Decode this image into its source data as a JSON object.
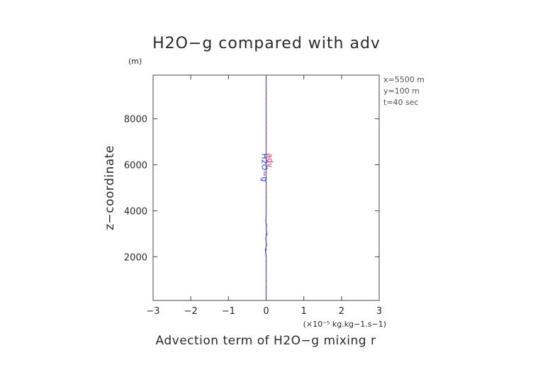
{
  "chart_data": {
    "type": "line",
    "title": "H2O−g compared with adv",
    "ylabel": "z−coordinate",
    "yunit": "(m)",
    "xlabel": "Advection term of H2O−g mixing r",
    "xunit": "(×10⁻⁵ kg.kg−1.s−1)",
    "xlim": [
      -3,
      3
    ],
    "ylim": [
      100,
      9900
    ],
    "x_ticks": [
      -3,
      -2,
      -1,
      0,
      1,
      2,
      3
    ],
    "y_ticks": [
      2000,
      4000,
      6000,
      8000
    ],
    "x_tick_labels": [
      "−3",
      "−2",
      "−1",
      "0",
      "1",
      "2",
      "3"
    ],
    "y_tick_labels": [
      "2000",
      "4000",
      "6000",
      "8000"
    ],
    "grid": false,
    "info": [
      "x=5500 m",
      "y=100 m",
      "t=40 sec"
    ],
    "series": [
      {
        "name": "H2O−g",
        "color": "#3b3bd6",
        "style": "solid",
        "points": [
          [
            0.0,
            100
          ],
          [
            0.0,
            500
          ],
          [
            0.0,
            1000
          ],
          [
            0.0,
            1500
          ],
          [
            0.0,
            2000
          ],
          [
            -0.02,
            2300
          ],
          [
            0.01,
            2500
          ],
          [
            -0.01,
            2800
          ],
          [
            0.02,
            3000
          ],
          [
            0.0,
            3200
          ],
          [
            0.01,
            3400
          ],
          [
            -0.01,
            3500
          ],
          [
            0.0,
            3800
          ],
          [
            0.0,
            4500
          ],
          [
            0.0,
            5500
          ],
          [
            0.0,
            6500
          ],
          [
            0.0,
            7500
          ],
          [
            0.0,
            8500
          ],
          [
            0.0,
            9500
          ],
          [
            0.0,
            9900
          ]
        ]
      },
      {
        "name": "adv",
        "color": "#d43a6e",
        "style": "dashed",
        "points": [
          [
            0.0,
            100
          ],
          [
            0.0,
            2000
          ],
          [
            0.0,
            4000
          ],
          [
            0.0,
            6000
          ],
          [
            0.0,
            8000
          ],
          [
            0.0,
            9900
          ]
        ]
      }
    ]
  }
}
